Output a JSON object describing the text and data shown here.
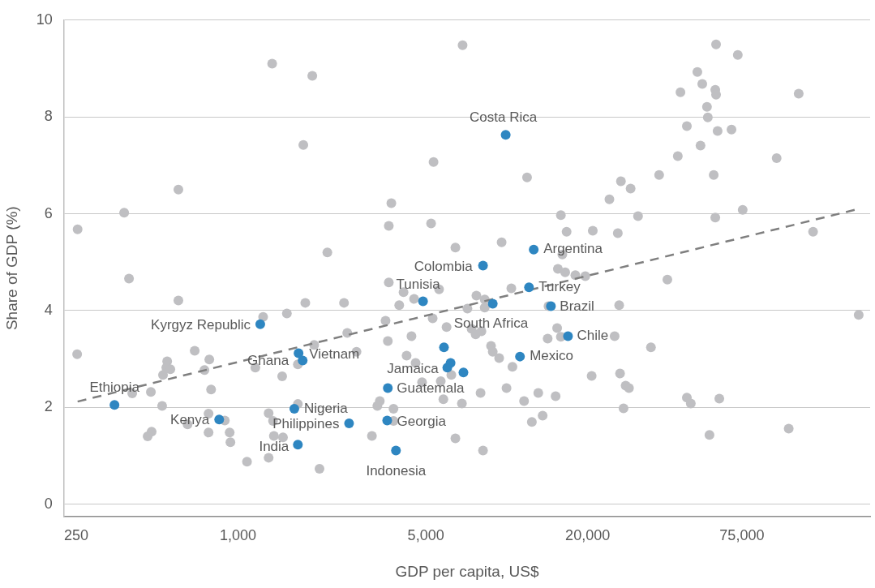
{
  "chart_data": {
    "type": "scatter",
    "xlabel": "GDP per capita, US$",
    "ylabel": "Share of GDP (%)",
    "log": "x",
    "xlim": [
      225,
      225000
    ],
    "xticks": [
      250,
      {
        "value": 1000,
        "label": "1,000"
      },
      {
        "value": 5000,
        "label": "5,000"
      },
      {
        "value": 20000,
        "label": "20,000"
      },
      {
        "value": 75000,
        "label": "75,000"
      }
    ],
    "ylim": [
      -0.25,
      10
    ],
    "yticks": [
      0,
      2,
      4,
      6,
      8,
      10
    ],
    "grid": "y",
    "marker": "circle",
    "series": [
      {
        "color": "#bfbfc2",
        "x": [
          6850,
          1340,
          1890,
          1750,
          5340,
          600,
          3720,
          377,
          253,
          3640,
          5230,
          2150,
          6440,
          60100,
          72400,
          51200,
          53400,
          44300,
          59700,
          60100,
          122000,
          55600,
          56000,
          46800,
          60900,
          68600,
          11900,
          52600,
          43300,
          101000,
          36900,
          58900,
          26600,
          28900,
          24100,
          15900,
          30800,
          59700,
          75500,
          16700,
          20900,
          25900,
          138000,
          9570,
          16100,
          15500,
          16500,
          18000,
          19600,
          10400,
          39600,
          7710,
          8280,
          7140,
          8280,
          14300,
          26200,
          204000,
          15400,
          7400,
          7660,
          8050,
          14200,
          15900,
          25200,
          34400,
          8740,
          8870,
          9370,
          10500,
          20700,
          26400,
          27700,
          28500,
          9980,
          7990,
          13100,
          15200,
          11600,
          46800,
          48400,
          61800,
          27200,
          13600,
          12400,
          56800,
          112000,
          8160,
          393,
          600,
          3640,
          4130,
          4520,
          3980,
          5600,
          1780,
          2480,
          1520,
          1240,
          3540,
          5300,
          5970,
          2550,
          4420,
          3610,
          252,
          690,
          782,
          545,
          541,
          560,
          526,
          750,
          1920,
          2760,
          4240,
          4580,
          1670,
          1160,
          1460,
          6220,
          5680,
          4840,
          5810,
          6810,
          794,
          474,
          404,
          522,
          3370,
          3300,
          3790,
          1670,
          777,
          893,
          649,
          1300,
          1350,
          3790,
          477,
          461,
          777,
          931,
          937,
          1360,
          1470,
          3150,
          6440,
          1080,
          1300,
          2010
        ],
        "values": [
          9.48,
          9.1,
          8.85,
          7.42,
          7.07,
          6.5,
          6.22,
          6.02,
          5.68,
          5.75,
          5.8,
          5.2,
          5.3,
          9.5,
          9.28,
          8.93,
          8.68,
          8.51,
          8.56,
          8.46,
          8.48,
          8.21,
          7.99,
          7.81,
          7.71,
          7.74,
          6.75,
          7.41,
          7.19,
          7.15,
          6.8,
          6.8,
          6.67,
          6.52,
          6.3,
          5.97,
          5.95,
          5.92,
          6.08,
          5.63,
          5.65,
          5.6,
          5.63,
          5.41,
          5.16,
          4.86,
          4.79,
          4.73,
          4.71,
          4.46,
          4.64,
          4.31,
          4.23,
          4.04,
          4.06,
          4.09,
          4.11,
          3.91,
          3.64,
          3.62,
          3.51,
          3.57,
          3.42,
          3.46,
          3.47,
          3.24,
          3.27,
          3.15,
          3.02,
          2.84,
          2.65,
          2.7,
          2.45,
          2.4,
          2.4,
          2.3,
          2.3,
          2.23,
          2.13,
          2.2,
          2.08,
          2.18,
          1.98,
          1.83,
          1.7,
          1.43,
          1.56,
          1.11,
          4.66,
          4.21,
          4.58,
          4.38,
          4.24,
          4.11,
          4.44,
          4.16,
          4.16,
          3.94,
          3.87,
          3.79,
          3.84,
          3.66,
          3.54,
          3.47,
          3.37,
          3.1,
          3.17,
          2.99,
          2.95,
          2.82,
          2.79,
          2.67,
          2.77,
          3.29,
          3.15,
          3.07,
          2.92,
          2.89,
          2.82,
          2.64,
          2.67,
          2.54,
          2.52,
          2.17,
          2.08,
          2.37,
          2.32,
          2.29,
          2.03,
          2.13,
          2.03,
          1.97,
          2.07,
          1.87,
          1.73,
          1.65,
          1.88,
          1.72,
          1.72,
          1.5,
          1.4,
          1.48,
          1.48,
          1.28,
          1.41,
          1.38,
          1.41,
          1.36,
          0.88,
          0.96,
          0.73
        ]
      },
      {
        "type": "line",
        "color": "#7f7f7f",
        "line_style": "dashed",
        "marker": "none",
        "x": [
          253,
          197000
        ],
        "values": [
          2.12,
          6.08
        ]
      },
      {
        "color": "#2e86c1",
        "x": [
          347,
          851,
          1670,
          1620,
          2590,
          1680,
          1740,
          1210,
          3590,
          3870,
          3610,
          6010,
          6180,
          6900,
          5840,
          4880,
          8160,
          8870,
          9910,
          12600,
          12100,
          14600,
          16900,
          11200
        ],
        "values": [
          2.05,
          1.75,
          1.23,
          1.97,
          1.67,
          3.12,
          2.97,
          3.72,
          1.73,
          1.11,
          2.4,
          2.82,
          2.92,
          2.72,
          3.24,
          4.19,
          4.93,
          4.14,
          7.63,
          5.26,
          4.48,
          4.09,
          3.47,
          3.05
        ]
      }
    ],
    "annotations": [
      {
        "text": "Costa Rica",
        "x": 9910,
        "y": 7.63
      },
      {
        "text": "Argentina",
        "x": 12600,
        "y": 5.26
      },
      {
        "text": "Colombia",
        "x": 8160,
        "y": 4.93
      },
      {
        "text": "Tunisia",
        "x": 4880,
        "y": 4.19
      },
      {
        "text": "Turkey",
        "x": 12100,
        "y": 4.48
      },
      {
        "text": "Brazil",
        "x": 14600,
        "y": 4.09
      },
      {
        "text": "Kyrgyz Republic",
        "x": 1210,
        "y": 3.72
      },
      {
        "text": "South Africa",
        "x": 5840,
        "y": 3.24
      },
      {
        "text": "Chile",
        "x": 16900,
        "y": 3.47
      },
      {
        "text": "Ghana",
        "x": 1680,
        "y": 3.12
      },
      {
        "text": "Vietnam",
        "x": 1740,
        "y": 2.97
      },
      {
        "text": "Mexico",
        "x": 11200,
        "y": 3.05
      },
      {
        "text": "Jamaica",
        "x": 6010,
        "y": 2.82
      },
      {
        "text": "Guatemala",
        "x": 3610,
        "y": 2.4
      },
      {
        "text": "Ethiopia",
        "x": 347,
        "y": 2.05
      },
      {
        "text": "Nigeria",
        "x": 1620,
        "y": 1.97
      },
      {
        "text": "Kenya",
        "x": 851,
        "y": 1.75
      },
      {
        "text": "Philippines",
        "x": 2590,
        "y": 1.67
      },
      {
        "text": "Georgia",
        "x": 3590,
        "y": 1.73
      },
      {
        "text": "India",
        "x": 1670,
        "y": 1.23
      },
      {
        "text": "Indonesia",
        "x": 3870,
        "y": 1.11
      }
    ]
  }
}
